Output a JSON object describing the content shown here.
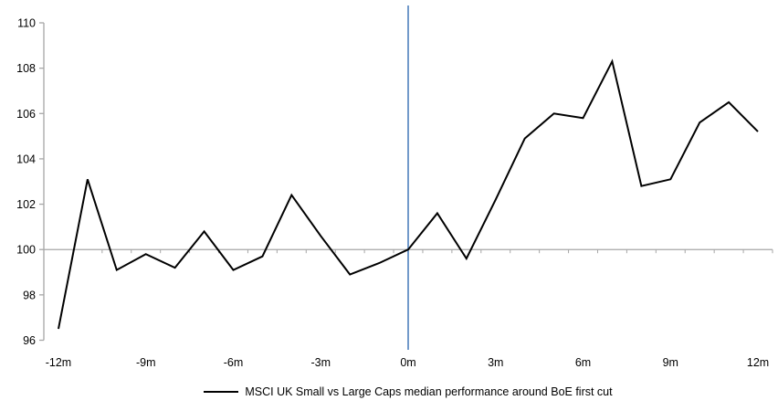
{
  "page": {
    "background": "#ffffff"
  },
  "chart_data": {
    "type": "line",
    "title": "",
    "xlabel": "",
    "ylabel": "",
    "x": [
      -12,
      -11,
      -10,
      -9,
      -8,
      -7,
      -6,
      -5,
      -4,
      -3,
      -2,
      -1,
      0,
      1,
      2,
      3,
      4,
      5,
      6,
      7,
      8,
      9,
      10,
      11,
      12
    ],
    "series": [
      {
        "name": "MSCI UK Small vs Large Caps median performance around BoE first cut",
        "color": "#000000",
        "values": [
          96.5,
          103.1,
          99.1,
          99.8,
          99.2,
          100.8,
          99.1,
          99.7,
          102.4,
          100.6,
          98.9,
          99.4,
          100.0,
          101.6,
          99.6,
          102.2,
          104.9,
          106.0,
          105.8,
          108.3,
          102.8,
          103.1,
          105.6,
          106.5,
          105.2
        ]
      }
    ],
    "ylim": [
      96,
      110
    ],
    "y_ticks": [
      96,
      98,
      100,
      102,
      104,
      106,
      108,
      110
    ],
    "x_tick_values": [
      -12,
      -9,
      -6,
      -3,
      0,
      3,
      6,
      9,
      12
    ],
    "x_tick_labels": [
      "-12m",
      "-9m",
      "-6m",
      "-3m",
      "0m",
      "3m",
      "6m",
      "9m",
      "12m"
    ],
    "minor_x_tick_interval": 1,
    "baseline_value": 100,
    "event_line_x": 0,
    "grid": "off",
    "legend_position": "bottom",
    "colors": {
      "series_line": "#000000",
      "baseline": "#a6a6a6",
      "axis": "#a6a6a6",
      "event_line": "#4f81bd",
      "tick_text": "#000000"
    }
  },
  "legend": {
    "label": "MSCI UK Small vs Large Caps median performance around BoE first cut",
    "swatch_color": "#000000"
  }
}
